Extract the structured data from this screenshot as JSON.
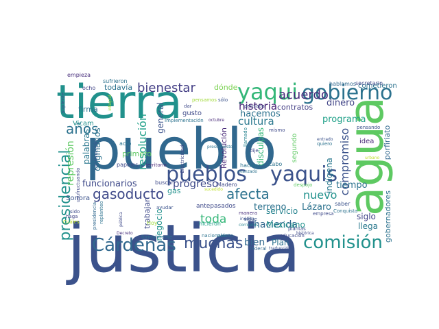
{
  "words": [
    {
      "text": "justicia",
      "color": "#3b528b"
    },
    {
      "text": "pueblo",
      "color": "#31688e"
    },
    {
      "text": "tierra",
      "color": "#21918c"
    },
    {
      "text": "agua",
      "color": "#5ec962"
    },
    {
      "text": "yaqui",
      "color": "#35b779"
    },
    {
      "text": "gobierno",
      "color": "#2c728e"
    },
    {
      "text": "pueblos",
      "color": "#3b528b"
    },
    {
      "text": "yaquis",
      "color": "#3b528b"
    },
    {
      "text": "Cárdenas",
      "color": "#31688e"
    },
    {
      "text": "comisión",
      "color": "#21918c"
    },
    {
      "text": "muchas",
      "color": "#3b528b"
    },
    {
      "text": "presidencial",
      "color": "#21918c"
    },
    {
      "text": "gasoducto",
      "color": "#3e4989"
    },
    {
      "text": "afecta",
      "color": "#2c728e"
    },
    {
      "text": "acuerdo",
      "color": "#472d7b"
    },
    {
      "text": "bienestar",
      "color": "#433e85"
    },
    {
      "text": "años",
      "color": "#2c728e"
    },
    {
      "text": "resolución",
      "color": "#1fa088"
    },
    {
      "text": "historia",
      "color": "#482576"
    },
    {
      "text": "cultura",
      "color": "#2a788e"
    },
    {
      "text": "progreso",
      "color": "#3e4989"
    },
    {
      "text": "nuevo",
      "color": "#21918c"
    },
    {
      "text": "compromiso",
      "color": "#3b528b"
    },
    {
      "text": "toda",
      "color": "#35b779"
    },
    {
      "text": "represión",
      "color": "#5ec962"
    },
    {
      "text": "funcionarios",
      "color": "#3e4989"
    },
    {
      "text": "hacienda",
      "color": "#31688e"
    },
    {
      "text": "hacemos",
      "color": "#2c728e"
    },
    {
      "text": "dinero",
      "color": "#414487"
    },
    {
      "text": "programa",
      "color": "#1fa088"
    },
    {
      "text": "terreno",
      "color": "#2c728e"
    },
    {
      "text": "Lázaro",
      "color": "#2c728e"
    },
    {
      "text": "Mexicano",
      "color": "#21918c"
    },
    {
      "text": "servicio",
      "color": "#26828e"
    },
    {
      "text": "indígena",
      "color": "#2a788e"
    },
    {
      "text": "tiempo",
      "color": "#2c728e"
    },
    {
      "text": "bien",
      "color": "#31688e"
    },
    {
      "text": "Plan",
      "color": "#2c728e"
    },
    {
      "text": "siglo",
      "color": "#414487"
    },
    {
      "text": "llega",
      "color": "#2a788e"
    },
    {
      "text": "palabras",
      "color": "#2a788e"
    },
    {
      "text": "originarios",
      "color": "#2c728e"
    },
    {
      "text": "general",
      "color": "#3b528b"
    },
    {
      "text": "negocio",
      "color": "#21918c"
    },
    {
      "text": "trabajar",
      "color": "#3e4989"
    },
    {
      "text": "todavía",
      "color": "#2c728e"
    },
    {
      "text": "dónde",
      "color": "#7ad151"
    },
    {
      "text": "cometieron",
      "color": "#2c728e"
    },
    {
      "text": "porfiriato",
      "color": "#31688e"
    },
    {
      "text": "gobernadores",
      "color": "#2c728e"
    },
    {
      "text": "contratos",
      "color": "#433e85"
    },
    {
      "text": "disculpas",
      "color": "#35b779"
    },
    {
      "text": "idea",
      "color": "#482878"
    },
    {
      "text": "firma",
      "color": "#2c728e"
    },
    {
      "text": "Vicam",
      "color": "#21918c"
    },
    {
      "text": "Sonora",
      "color": "#3b528b"
    },
    {
      "text": "primero",
      "color": "#5ec962"
    },
    {
      "text": "gas",
      "color": "#21918c"
    },
    {
      "text": "Revolución",
      "color": "#482878"
    },
    {
      "text": "segundo",
      "color": "#5ec962"
    },
    {
      "text": "gusto",
      "color": "#3e4989"
    },
    {
      "text": "hablamos",
      "color": "#31688e"
    },
    {
      "text": "secretario",
      "color": "#3e4989"
    },
    {
      "text": "empieza",
      "color": "#472d7b"
    },
    {
      "text": "ocho",
      "color": "#414487"
    },
    {
      "text": "sufrieron",
      "color": "#2c728e"
    },
    {
      "text": "pensamos",
      "color": "#a0da39"
    },
    {
      "text": "sólo",
      "color": "#3b528b"
    },
    {
      "text": "octubre",
      "color": "#482878"
    },
    {
      "text": "Implementación",
      "color": "#2c728e"
    },
    {
      "text": "pensaba",
      "color": "#3e4989"
    },
    {
      "text": "dar",
      "color": "#3e4989"
    },
    {
      "text": "pensando",
      "color": "#3b528b"
    },
    {
      "text": "quiero",
      "color": "#2c728e"
    },
    {
      "text": "entrado",
      "color": "#3b528b"
    },
    {
      "text": "urbano",
      "color": "#bddf26"
    },
    {
      "text": "acto",
      "color": "#2c728e"
    },
    {
      "text": "papeles",
      "color": "#3e4989"
    },
    {
      "text": "territorio",
      "color": "#482878"
    },
    {
      "text": "hacían",
      "color": "#2c728e"
    },
    {
      "text": "cabo",
      "color": "#2c728e"
    },
    {
      "text": "buscar",
      "color": "#3e4989"
    },
    {
      "text": "Madero",
      "color": "#3e4989"
    },
    {
      "text": "despojo",
      "color": "#5ec962"
    },
    {
      "text": "saber",
      "color": "#3b528b"
    },
    {
      "text": "empresa",
      "color": "#3e4989"
    },
    {
      "text": "Conquista",
      "color": "#2c728e"
    },
    {
      "text": "antepasados",
      "color": "#3e4989"
    },
    {
      "text": "manera",
      "color": "#472d7b"
    },
    {
      "text": "inédito",
      "color": "#3b528b"
    },
    {
      "text": "hicieron",
      "color": "#1fa088"
    },
    {
      "text": "corruptos",
      "color": "#26828e"
    },
    {
      "text": "sigue",
      "color": "#3b528b"
    },
    {
      "text": "ayudar",
      "color": "#3b528b"
    },
    {
      "text": "Hoy",
      "color": "#a0da39"
    },
    {
      "text": "haga",
      "color": "#414487"
    },
    {
      "text": "Cuáles",
      "color": "#bddf26"
    },
    {
      "text": "sido",
      "color": "#3e4989"
    },
    {
      "text": "suplente",
      "color": "#3b528b"
    },
    {
      "text": "usufructuando",
      "color": "#3e4989"
    },
    {
      "text": "construcción",
      "color": "#3b528b"
    },
    {
      "text": "integral",
      "color": "#a0da39"
    },
    {
      "text": "presidencia",
      "color": "#31688e"
    },
    {
      "text": "replanteo",
      "color": "#2c728e"
    },
    {
      "text": "nacionales",
      "color": "#2c728e"
    },
    {
      "text": "educación",
      "color": "#3e4989"
    },
    {
      "text": "histórica",
      "color": "#3e4989"
    },
    {
      "text": "formalmente",
      "color": "#2c728e"
    },
    {
      "text": "Decreto",
      "color": "#472d7b"
    },
    {
      "text": "pública",
      "color": "#3e4989"
    },
    {
      "text": "federal",
      "color": "#31688e"
    },
    {
      "text": "traducción",
      "color": "#3b528b"
    },
    {
      "text": "plantas",
      "color": "#3e4989"
    },
    {
      "text": "dije",
      "color": "#3e4989"
    },
    {
      "text": "llamado",
      "color": "#26828e"
    },
    {
      "text": "mismo",
      "color": "#3e4989"
    },
    {
      "text": "Electricidad",
      "color": "#3e4989"
    },
    {
      "text": "presupuesto",
      "color": "#2c728e"
    },
    {
      "text": "cuánto",
      "color": "#2c728e"
    },
    {
      "text": "sucedido",
      "color": "#bddf26"
    },
    {
      "text": "avanzado",
      "color": "#2c728e"
    }
  ]
}
